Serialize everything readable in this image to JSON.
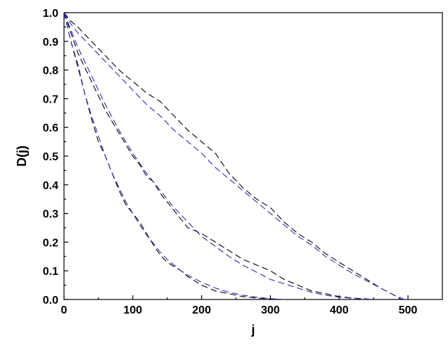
{
  "chart_data": {
    "type": "line",
    "title": "",
    "xlabel": "j",
    "ylabel": "D(j)",
    "xlim": [
      0,
      550
    ],
    "ylim": [
      0,
      1.0
    ],
    "grid": false,
    "x_ticks": [
      0,
      100,
      200,
      300,
      400,
      500
    ],
    "x_tick_labels": [
      "0",
      "100",
      "200",
      "300",
      "400",
      "500"
    ],
    "y_ticks": [
      0.0,
      0.1,
      0.2,
      0.3,
      0.4,
      0.5,
      0.6,
      0.7,
      0.8,
      0.9,
      1.0
    ],
    "y_tick_labels": [
      "0.0",
      "0.1",
      "0.2",
      "0.3",
      "0.4",
      "0.5",
      "0.6",
      "0.7",
      "0.8",
      "0.9",
      "1.0"
    ],
    "colors": {
      "empirical": "#000000",
      "fitted": "#2b2bb8"
    },
    "series": [
      {
        "style": "empirical",
        "x": [
          0,
          10,
          20,
          30,
          40,
          50,
          60,
          70,
          80,
          90,
          100,
          110,
          120,
          130,
          140,
          150,
          160,
          170,
          180,
          200,
          220,
          240,
          260,
          280,
          300,
          320
        ],
        "y": [
          1.0,
          0.9,
          0.82,
          0.72,
          0.63,
          0.55,
          0.5,
          0.44,
          0.38,
          0.33,
          0.3,
          0.27,
          0.23,
          0.19,
          0.155,
          0.13,
          0.115,
          0.1,
          0.08,
          0.05,
          0.03,
          0.02,
          0.01,
          0.005,
          0.002,
          0.0
        ]
      },
      {
        "style": "fitted",
        "x": [
          0,
          10,
          20,
          30,
          40,
          50,
          60,
          70,
          80,
          90,
          100,
          110,
          120,
          130,
          140,
          150,
          160,
          170,
          180,
          200,
          220,
          240,
          260,
          280,
          300,
          320
        ],
        "y": [
          1.0,
          0.9,
          0.81,
          0.72,
          0.64,
          0.57,
          0.5,
          0.44,
          0.39,
          0.34,
          0.3,
          0.26,
          0.225,
          0.195,
          0.165,
          0.14,
          0.12,
          0.1,
          0.085,
          0.06,
          0.04,
          0.025,
          0.015,
          0.008,
          0.003,
          0.0
        ]
      },
      {
        "style": "empirical",
        "x": [
          0,
          10,
          20,
          40,
          60,
          80,
          100,
          110,
          120,
          130,
          140,
          150,
          160,
          170,
          180,
          200,
          220,
          240,
          260,
          280,
          300,
          320,
          340,
          360,
          380,
          400,
          420,
          440,
          450
        ],
        "y": [
          1.0,
          0.93,
          0.86,
          0.76,
          0.66,
          0.58,
          0.5,
          0.47,
          0.43,
          0.41,
          0.37,
          0.34,
          0.31,
          0.28,
          0.25,
          0.23,
          0.2,
          0.17,
          0.14,
          0.12,
          0.1,
          0.07,
          0.05,
          0.03,
          0.02,
          0.01,
          0.005,
          0.002,
          0.0
        ]
      },
      {
        "style": "fitted",
        "x": [
          0,
          10,
          20,
          40,
          60,
          80,
          100,
          120,
          140,
          160,
          180,
          200,
          220,
          240,
          260,
          280,
          300,
          320,
          340,
          360,
          380,
          400,
          420,
          440,
          450
        ],
        "y": [
          1.0,
          0.94,
          0.88,
          0.78,
          0.68,
          0.59,
          0.51,
          0.44,
          0.38,
          0.32,
          0.27,
          0.22,
          0.185,
          0.15,
          0.12,
          0.095,
          0.07,
          0.055,
          0.04,
          0.025,
          0.015,
          0.008,
          0.004,
          0.001,
          0.0
        ]
      },
      {
        "style": "empirical",
        "x": [
          0,
          10,
          20,
          40,
          60,
          80,
          100,
          120,
          140,
          160,
          180,
          200,
          220,
          240,
          260,
          280,
          300,
          320,
          340,
          360,
          380,
          400,
          420,
          440,
          460,
          480,
          490
        ],
        "y": [
          1.0,
          0.97,
          0.95,
          0.9,
          0.85,
          0.8,
          0.76,
          0.72,
          0.69,
          0.64,
          0.59,
          0.55,
          0.51,
          0.44,
          0.39,
          0.35,
          0.32,
          0.27,
          0.23,
          0.2,
          0.16,
          0.13,
          0.1,
          0.07,
          0.04,
          0.015,
          0.0
        ]
      },
      {
        "style": "fitted",
        "x": [
          0,
          10,
          20,
          40,
          60,
          80,
          100,
          120,
          140,
          160,
          180,
          200,
          220,
          240,
          260,
          280,
          300,
          320,
          340,
          360,
          380,
          400,
          420,
          440,
          460,
          480,
          495
        ],
        "y": [
          1.0,
          0.96,
          0.93,
          0.88,
          0.83,
          0.78,
          0.73,
          0.68,
          0.64,
          0.59,
          0.55,
          0.51,
          0.46,
          0.42,
          0.38,
          0.34,
          0.3,
          0.26,
          0.22,
          0.19,
          0.15,
          0.12,
          0.09,
          0.065,
          0.04,
          0.015,
          0.0
        ]
      }
    ]
  }
}
